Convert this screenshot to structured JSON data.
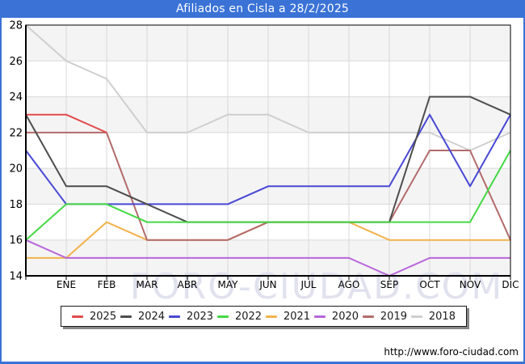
{
  "title": "Afiliados en Cisla a 28/2/2025",
  "footer": {
    "url": "http://www.foro-ciudad.com"
  },
  "watermark": "FORO-CIUDAD.COM",
  "colors": {
    "title_bar": "#3a72d6",
    "page_border": "#3a72d6",
    "plot_band_gray": "#f4f4f4",
    "plot_band_white": "#ffffff",
    "gridline": "#d9d9d9",
    "axis": "#000000",
    "watermark": "#e1e2ee"
  },
  "chart_data": {
    "type": "line",
    "title": "Afiliados en Cisla a 28/2/2025",
    "xlabel": "",
    "ylabel": "",
    "ylim": [
      14,
      28
    ],
    "yticks": [
      28,
      26,
      24,
      22,
      20,
      18,
      16,
      14
    ],
    "grid": true,
    "legend_position": "bottom",
    "categories": [
      "",
      "ENE",
      "FEB",
      "MAR",
      "ABR",
      "MAY",
      "JUN",
      "JUL",
      "AGO",
      "SEP",
      "OCT",
      "NOV",
      "DIC"
    ],
    "series": [
      {
        "name": "2025",
        "color": "#e14b4b",
        "values": [
          23,
          23,
          22
        ]
      },
      {
        "name": "2024",
        "color": "#4d4d4d",
        "values": [
          23,
          19,
          19,
          18,
          17,
          17,
          17,
          17,
          17,
          17,
          24,
          24,
          23
        ]
      },
      {
        "name": "2023",
        "color": "#4848d6",
        "values": [
          21,
          18,
          18,
          18,
          18,
          18,
          19,
          19,
          19,
          19,
          23,
          19,
          23
        ]
      },
      {
        "name": "2022",
        "color": "#43d943",
        "values": [
          16,
          18,
          18,
          17,
          17,
          17,
          17,
          17,
          17,
          17,
          17,
          17,
          21
        ]
      },
      {
        "name": "2021",
        "color": "#f2b24e",
        "values": [
          15,
          15,
          17,
          16,
          16,
          16,
          17,
          17,
          17,
          16,
          16,
          16,
          16
        ]
      },
      {
        "name": "2020",
        "color": "#b765d9",
        "values": [
          16,
          15,
          15,
          15,
          15,
          15,
          15,
          15,
          15,
          14,
          15,
          15,
          15
        ]
      },
      {
        "name": "2019",
        "color": "#b26b6b",
        "values": [
          22,
          22,
          22,
          16,
          16,
          16,
          17,
          17,
          17,
          17,
          21,
          21,
          16
        ]
      },
      {
        "name": "2018",
        "color": "#cfcfcf",
        "values": [
          28,
          26,
          25,
          22,
          22,
          23,
          23,
          22,
          22,
          22,
          22,
          21,
          22
        ]
      }
    ]
  }
}
